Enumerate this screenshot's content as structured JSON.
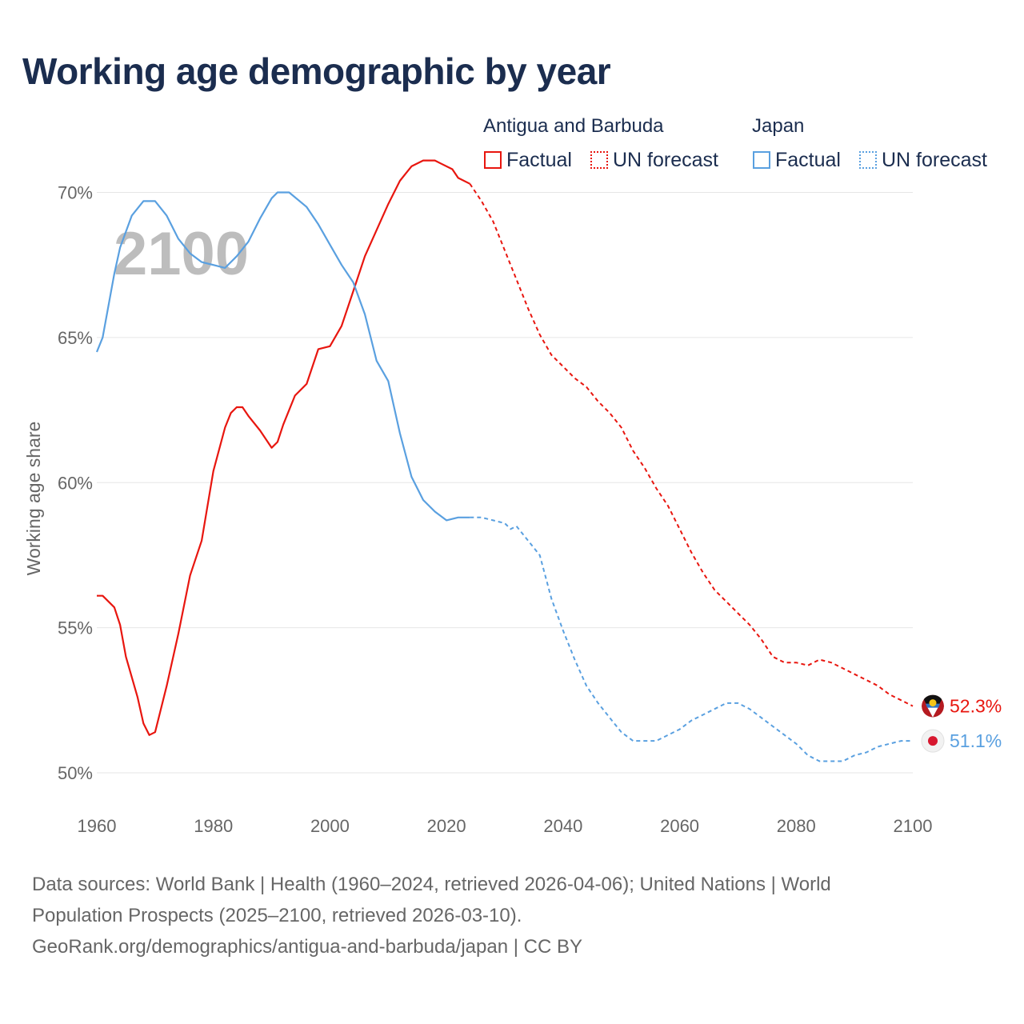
{
  "title": "Working age demographic by year",
  "legend": {
    "antigua": {
      "title": "Antigua and Barbuda",
      "factual": "Factual",
      "forecast": "UN forecast",
      "color": "#e8160f"
    },
    "japan": {
      "title": "Japan",
      "factual": "Factual",
      "forecast": "UN forecast",
      "color": "#5aa0e0"
    }
  },
  "footer": {
    "line1": "Data sources: World Bank | Health (1960–2024, retrieved 2026-04-06); United Nations | World",
    "line2": "Population Prospects (2025–2100, retrieved 2026-03-10).",
    "line3": "GeoRank.org/demographics/antigua-and-barbuda/japan | CC BY"
  },
  "chart_data": {
    "type": "line",
    "year_overlay": "2100",
    "ylabel": "Working age share",
    "xlim": [
      1960,
      2100
    ],
    "ylim": [
      50,
      72
    ],
    "xticks": [
      1960,
      1980,
      2000,
      2020,
      2040,
      2060,
      2080,
      2100
    ],
    "xtick_labels": [
      "1960",
      "1980",
      "2000",
      "2020",
      "2040",
      "2060",
      "2080",
      "2100"
    ],
    "yticks": [
      50,
      55,
      60,
      65,
      70
    ],
    "ytick_labels": [
      "50%",
      "55%",
      "60%",
      "65%",
      "70%"
    ],
    "end_labels": {
      "antigua": "52.3%",
      "japan": "51.1%"
    },
    "series": [
      {
        "name": "Antigua and Barbuda",
        "key": "antigua",
        "factual_through": 2024,
        "x": [
          1960,
          1961,
          1963,
          1964,
          1965,
          1967,
          1968,
          1969,
          1970,
          1972,
          1974,
          1976,
          1978,
          1980,
          1982,
          1983,
          1984,
          1985,
          1986,
          1988,
          1990,
          1991,
          1992,
          1994,
          1996,
          1998,
          2000,
          2002,
          2004,
          2006,
          2008,
          2010,
          2012,
          2014,
          2016,
          2018,
          2019,
          2021,
          2022,
          2024,
          2025,
          2026,
          2028,
          2030,
          2032,
          2034,
          2036,
          2038,
          2040,
          2042,
          2044,
          2046,
          2048,
          2050,
          2052,
          2054,
          2056,
          2058,
          2060,
          2062,
          2064,
          2066,
          2068,
          2070,
          2072,
          2074,
          2076,
          2078,
          2080,
          2082,
          2084,
          2086,
          2088,
          2090,
          2092,
          2094,
          2096,
          2098,
          2100
        ],
        "values": [
          56.1,
          56.1,
          55.7,
          55.1,
          54.0,
          52.6,
          51.7,
          51.3,
          51.4,
          53.0,
          54.8,
          56.8,
          58.0,
          60.4,
          61.9,
          62.4,
          62.6,
          62.6,
          62.3,
          61.8,
          61.2,
          61.4,
          62.0,
          63.0,
          63.4,
          64.6,
          64.7,
          65.4,
          66.6,
          67.8,
          68.7,
          69.6,
          70.4,
          70.9,
          71.1,
          71.1,
          71.0,
          70.8,
          70.5,
          70.3,
          70.0,
          69.7,
          69.0,
          68.0,
          67.0,
          66.0,
          65.1,
          64.4,
          64.0,
          63.6,
          63.3,
          62.8,
          62.4,
          61.9,
          61.1,
          60.5,
          59.8,
          59.2,
          58.4,
          57.6,
          56.9,
          56.3,
          55.9,
          55.5,
          55.1,
          54.6,
          54.0,
          53.8,
          53.8,
          53.7,
          53.9,
          53.8,
          53.6,
          53.4,
          53.2,
          53.0,
          52.7,
          52.5,
          52.3
        ]
      },
      {
        "name": "Japan",
        "key": "japan",
        "factual_through": 2024,
        "x": [
          1960,
          1961,
          1963,
          1964,
          1966,
          1968,
          1969,
          1970,
          1972,
          1974,
          1976,
          1978,
          1980,
          1982,
          1984,
          1986,
          1988,
          1990,
          1991,
          1993,
          1996,
          1998,
          2000,
          2002,
          2004,
          2006,
          2008,
          2010,
          2012,
          2014,
          2016,
          2018,
          2020,
          2022,
          2024,
          2026,
          2028,
          2030,
          2031,
          2032,
          2034,
          2036,
          2038,
          2040,
          2042,
          2044,
          2046,
          2048,
          2050,
          2052,
          2054,
          2056,
          2058,
          2060,
          2062,
          2064,
          2066,
          2068,
          2070,
          2072,
          2074,
          2076,
          2078,
          2080,
          2082,
          2084,
          2086,
          2088,
          2090,
          2092,
          2094,
          2096,
          2098,
          2100
        ],
        "values": [
          64.5,
          65.0,
          67.2,
          68.1,
          69.2,
          69.7,
          69.7,
          69.7,
          69.2,
          68.4,
          67.9,
          67.6,
          67.5,
          67.4,
          67.8,
          68.3,
          69.1,
          69.8,
          70.0,
          70.0,
          69.5,
          68.9,
          68.2,
          67.5,
          66.9,
          65.8,
          64.2,
          63.5,
          61.7,
          60.2,
          59.4,
          59.0,
          58.7,
          58.8,
          58.8,
          58.8,
          58.7,
          58.6,
          58.4,
          58.5,
          58.0,
          57.5,
          56.0,
          54.9,
          53.9,
          53.0,
          52.4,
          51.9,
          51.4,
          51.1,
          51.1,
          51.1,
          51.3,
          51.5,
          51.8,
          52.0,
          52.2,
          52.4,
          52.4,
          52.2,
          51.9,
          51.6,
          51.3,
          51.0,
          50.6,
          50.4,
          50.4,
          50.4,
          50.6,
          50.7,
          50.9,
          51.0,
          51.1,
          51.1
        ]
      }
    ]
  }
}
